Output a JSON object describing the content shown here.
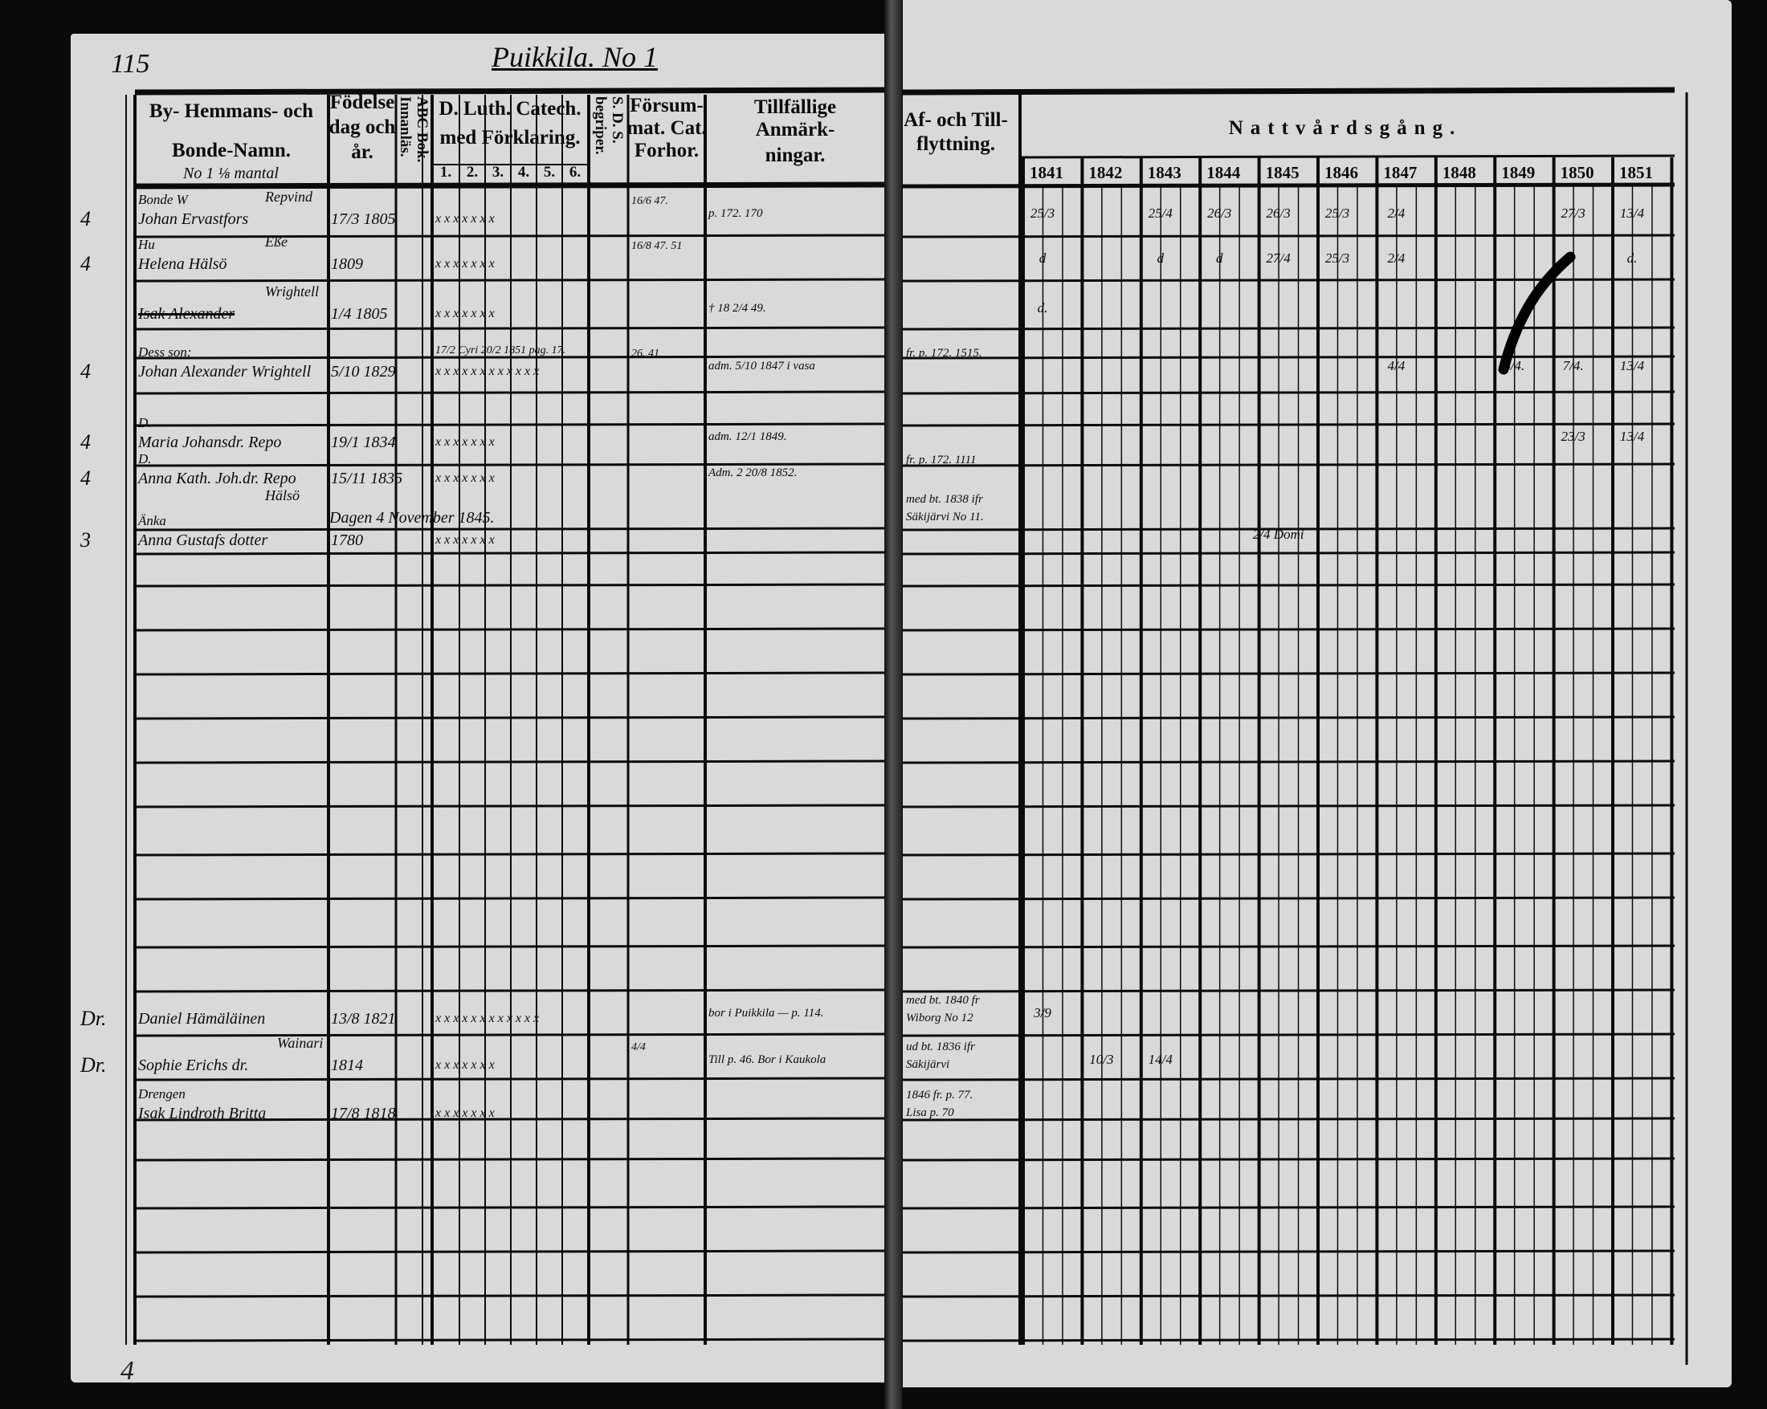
{
  "left_page": {
    "page_number": "115",
    "title": "Puikkila. No 1",
    "headers": {
      "name_line1": "By- Hemmans- och",
      "name_line2": "Bonde-Namn.",
      "name_note": "No 1 ⅛ mantal",
      "birth": [
        "Födelse",
        "dag och",
        "år."
      ],
      "abc": "ABC Bok. Innanläs.",
      "catech_line1": "D. Luth. Catech.",
      "catech_line2": "med Förklaring.",
      "catech_numbers": [
        "1.",
        "2.",
        "3.",
        "4.",
        "5.",
        "6."
      ],
      "sds": "S. D. S. begriper.",
      "neglect": [
        "Försum-",
        "mat. Cat.",
        "Forhor."
      ],
      "remarks": [
        "Tillfällige Anmärk-",
        "ningar."
      ]
    },
    "entries": [
      {
        "margin": "4",
        "title": "Bonde W",
        "above": "Repvind",
        "name": "Johan Ervastfors",
        "birth": "17/3 1805",
        "catechism": "x x x x x x x",
        "neglect": "16/6 47.",
        "remarks": "p. 172. 170"
      },
      {
        "margin": "4",
        "title": "Hu",
        "above": "Eße",
        "name": "Helena Hälsö",
        "birth": "1809",
        "catechism": "x x x x x x x",
        "neglect": "16/8 47. 51",
        "remarks": ""
      },
      {
        "margin": "",
        "title": "",
        "above": "Wrightell",
        "name": "Isak Alexander",
        "birth": "1/4 1805",
        "catechism": "x x x x x x x",
        "neglect": "",
        "remarks": "† 18 2/4 49."
      },
      {
        "margin": "4",
        "title": "Dess son:",
        "above": "",
        "name": "Johan Alexander Wrightell",
        "birth": "5/10 1829",
        "catechism": "x x x x x x x x x x x x",
        "neglect": "26. 41",
        "remarks": "adm. 5/10 1847 i vasa",
        "note": "17/2 Cyri 20/2 1851 pag. 17."
      },
      {
        "margin": "4",
        "title": "D.",
        "above": "",
        "name": "Maria Johansdr. Repo",
        "birth": "19/1 1834",
        "catechism": "x x x x x x x",
        "neglect": "",
        "remarks": "adm. 12/1 1849."
      },
      {
        "margin": "4",
        "title": "D.",
        "above": "",
        "name": "Anna Kath. Joh.dr. Repo",
        "birth": "15/11 1835",
        "catechism": "x x x x x x x",
        "neglect": "",
        "remarks": "Adm. 2 20/8 1852."
      },
      {
        "margin": "",
        "title": "",
        "above": "Hälsö",
        "name": "Dagen 4 November 1845.",
        "birth": "",
        "catechism": "",
        "neglect": "",
        "remarks": ""
      },
      {
        "margin": "3",
        "title": "Änka",
        "above": "",
        "name": "Anna Gustafs dotter",
        "birth": "1780",
        "catechism": "x x x x x x x",
        "neglect": "",
        "remarks": ""
      },
      {
        "margin": "Dr.",
        "title": "",
        "above": "",
        "name": "Daniel Hämäläinen",
        "birth": "13/8 1821",
        "catechism": "x x x x x x x x x x x x",
        "neglect": "",
        "remarks": "bor i Puikkila — p. 114."
      },
      {
        "margin": "Dr.",
        "title": "",
        "above": "Wainari",
        "name": "Sophie Erichs dr.",
        "birth": "1814",
        "catechism": "x x x x x x x",
        "neglect": "4/4",
        "remarks": "Till p. 46.  Bor i Kaukola"
      },
      {
        "margin": "",
        "title": "Drengen",
        "above": "",
        "name": "Isak Lindroth Britta",
        "birth": "17/8 1818",
        "catechism": "x x x x x x x",
        "neglect": "",
        "remarks": ""
      }
    ],
    "footer_mark": "4"
  },
  "right_page": {
    "moves_header": [
      "Af- och Till-",
      "flyttning."
    ],
    "communion_header": "Nattvårdsgång.",
    "years": [
      "1841",
      "1842",
      "1843",
      "1844",
      "1845",
      "1846",
      "1847",
      "1848",
      "1849",
      "1850",
      "1851"
    ],
    "moves": [
      {
        "row": 3,
        "text": "fr. p. 172. 1515."
      },
      {
        "row": 5,
        "text": "fr. p. 172. 1111"
      },
      {
        "row": 6,
        "text": "med bt. 1838 ifr"
      },
      {
        "row": 6,
        "text2": "Säkijärvi No 11."
      },
      {
        "row": 8,
        "text": "med bt. 1840 fr"
      },
      {
        "row": 8,
        "text2": "Wiborg No 12"
      },
      {
        "row": 9,
        "text": "ud bt. 1836 ifr"
      },
      {
        "row": 9,
        "text2": "Säkijärvi"
      },
      {
        "row": 10,
        "text": "1846 fr. p. 77."
      },
      {
        "row": 10,
        "text2": "Lisa p. 70"
      }
    ],
    "communion_marks": [
      {
        "year": "1841",
        "row": 0,
        "text": "25/3"
      },
      {
        "year": "1841",
        "row": 1,
        "text": "d"
      },
      {
        "year": "1841",
        "row": 2,
        "text": "d."
      },
      {
        "year": "1843",
        "row": 0,
        "text": "25/4"
      },
      {
        "year": "1843",
        "row": 1,
        "text": "d"
      },
      {
        "year": "1844",
        "row": 0,
        "text": "26/3"
      },
      {
        "year": "1844",
        "row": 1,
        "text": "d"
      },
      {
        "year": "1845",
        "row": 0,
        "text": "26/3"
      },
      {
        "year": "1845",
        "row": 1,
        "text": "27/4"
      },
      {
        "year": "1845",
        "row": 7,
        "text": "2/4 Domi"
      },
      {
        "year": "1846",
        "row": 0,
        "text": "25/3"
      },
      {
        "year": "1846",
        "row": 1,
        "text": "25/3"
      },
      {
        "year": "1847",
        "row": 0,
        "text": "2/4"
      },
      {
        "year": "1847",
        "row": 1,
        "text": "2/4"
      },
      {
        "year": "1847",
        "row": 3,
        "text": "4/4"
      },
      {
        "year": "1849",
        "row": 3,
        "text": "6/4."
      },
      {
        "year": "1850",
        "row": 0,
        "text": "27/3"
      },
      {
        "year": "1850",
        "row": 3,
        "text": "7/4."
      },
      {
        "year": "1850",
        "row": 4,
        "text": "23/3"
      },
      {
        "year": "1851",
        "row": 0,
        "text": "13/4"
      },
      {
        "year": "1851",
        "row": 1,
        "text": "d."
      },
      {
        "year": "1851",
        "row": 3,
        "text": "13/4"
      },
      {
        "year": "1851",
        "row": 4,
        "text": "13/4"
      },
      {
        "year": "1841",
        "row": 8,
        "text": "3/9"
      },
      {
        "year": "1842",
        "row": 9,
        "text": "10/3"
      },
      {
        "year": "1843",
        "row": 9,
        "text": "14/4"
      }
    ]
  }
}
